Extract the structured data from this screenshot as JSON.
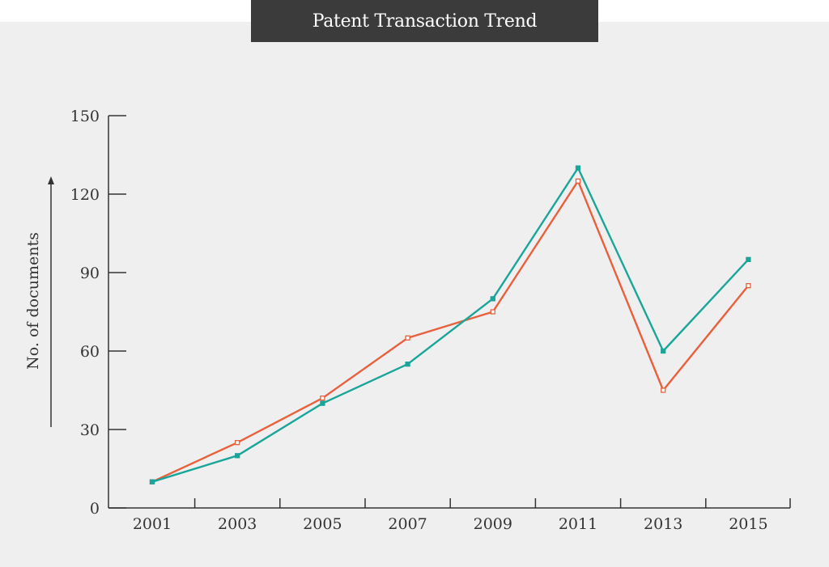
{
  "chart_data": {
    "type": "line",
    "title": "Patent Transaction Trend",
    "xlabel": "",
    "ylabel": "No. of documents",
    "x": [
      2001,
      2003,
      2005,
      2007,
      2009,
      2011,
      2013,
      2015
    ],
    "x_tick_labels": [
      "2001",
      "2003",
      "2005",
      "2007",
      "2009",
      "2011",
      "2013",
      "2015"
    ],
    "y_ticks": [
      0,
      30,
      60,
      90,
      120,
      150
    ],
    "ylim": [
      0,
      150
    ],
    "grid": false,
    "legend": "none",
    "series": [
      {
        "color": "#e8603c",
        "marker": "hollow-square",
        "values": [
          10,
          25,
          42,
          65,
          75,
          125,
          45,
          85
        ]
      },
      {
        "color": "#1aa59a",
        "marker": "filled-square",
        "values": [
          10,
          20,
          40,
          55,
          80,
          130,
          60,
          95
        ]
      }
    ]
  },
  "colors": {
    "panel": "#f0efef",
    "title_bar": "#3b3b3b",
    "axis": "#333333"
  }
}
